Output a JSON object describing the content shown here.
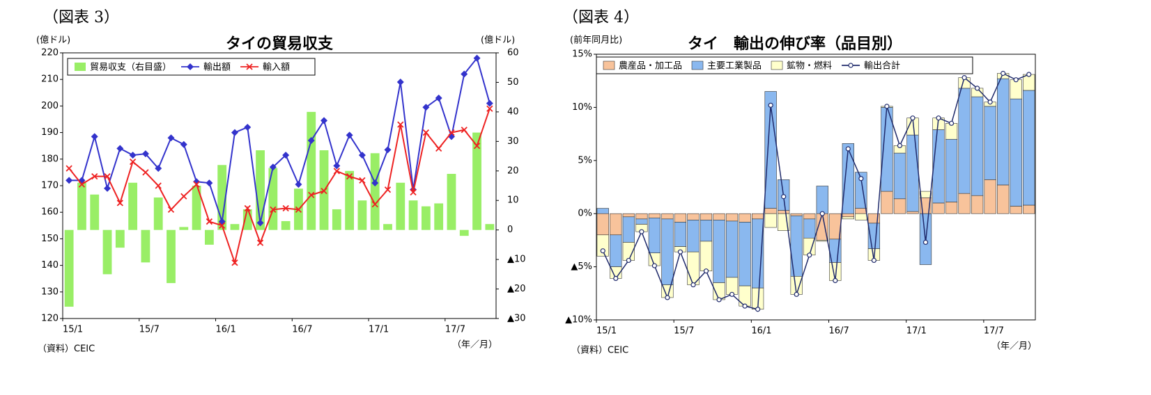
{
  "chart_data": [
    {
      "type": "combo",
      "figure_label": "（図表 3）",
      "title": "タイの貿易収支",
      "y_label": "(億ドル)",
      "y2_label": "(億ドル)",
      "x_label": "（年／月）",
      "source": "（資料）CEIC",
      "categories": [
        "15/1",
        null,
        null,
        null,
        null,
        null,
        "15/7",
        null,
        null,
        null,
        null,
        null,
        "16/1",
        null,
        null,
        null,
        null,
        null,
        "16/7",
        null,
        null,
        null,
        null,
        null,
        "17/1",
        null,
        null,
        null,
        null,
        null,
        "17/7",
        null,
        null,
        null
      ],
      "ylim": [
        120,
        220
      ],
      "yticks": [
        120,
        130,
        140,
        150,
        160,
        170,
        180,
        190,
        200,
        210,
        220
      ],
      "y2lim": [
        -30,
        60
      ],
      "y2ticks": [
        {
          "value": -30,
          "label": "▲30"
        },
        {
          "value": -20,
          "label": "▲20"
        },
        {
          "value": -10,
          "label": "▲10"
        },
        0,
        10,
        20,
        30,
        40,
        50,
        60
      ],
      "grid": false,
      "series": [
        {
          "name": "貿易収支（右目盛）",
          "type": "bar",
          "axis": "y2",
          "color": "#99ee66",
          "values": [
            -26,
            16,
            12,
            -15,
            -6,
            16,
            -11,
            11,
            -18,
            1,
            15,
            -5,
            22,
            2,
            7,
            27,
            21,
            3,
            14,
            40,
            27,
            7,
            20,
            10,
            26,
            2,
            16,
            10,
            8,
            9,
            19,
            -2,
            33,
            2
          ]
        },
        {
          "name": "輸出額",
          "type": "line",
          "marker": "diamond",
          "color": "#3333cc",
          "values": [
            172,
            172,
            188.5,
            169,
            184,
            181.5,
            182,
            176.5,
            188,
            185.5,
            171.5,
            171,
            156.5,
            190,
            192,
            156,
            177,
            181.5,
            170.5,
            187,
            194.5,
            177.5,
            189,
            181.5,
            171,
            183.5,
            209,
            168.5,
            199.5,
            203,
            188.5,
            212,
            218,
            201
          ]
        },
        {
          "name": "輸入額",
          "type": "line",
          "marker": "x",
          "color": "#ee2222",
          "values": [
            176.5,
            170.5,
            173.5,
            173.5,
            163.5,
            179,
            175,
            170,
            161,
            166,
            170.5,
            156.5,
            155,
            141,
            161.5,
            148.5,
            161,
            161.5,
            161,
            166.5,
            168,
            175.5,
            173.5,
            172,
            163,
            168.5,
            193,
            167.5,
            190,
            184,
            190,
            191,
            185,
            199
          ]
        }
      ]
    },
    {
      "type": "stacked_bar",
      "figure_label": "（図表 4）",
      "title": "タイ　輸出の伸び率（品目別）",
      "y_label": "(前年同月比)",
      "x_label": "（年／月）",
      "source": "（資料）CEIC",
      "categories": [
        "15/1",
        null,
        null,
        null,
        null,
        null,
        "15/7",
        null,
        null,
        null,
        null,
        null,
        "16/1",
        null,
        null,
        null,
        null,
        null,
        "16/7",
        null,
        null,
        null,
        null,
        null,
        "17/1",
        null,
        null,
        null,
        null,
        null,
        "17/7",
        null,
        null,
        null
      ],
      "ylim": [
        -10,
        15
      ],
      "yticks": [
        {
          "value": -10,
          "label": "▲10%"
        },
        {
          "value": -5,
          "label": "▲5%"
        },
        {
          "value": 0,
          "label": "0%"
        },
        {
          "value": 5,
          "label": "5%"
        },
        {
          "value": 10,
          "label": "10%"
        },
        {
          "value": 15,
          "label": "15%"
        }
      ],
      "grid": false,
      "series": [
        {
          "name": "農産品・加工品",
          "type": "bar",
          "color": "#f8c39b",
          "values": [
            -2.0,
            -2.0,
            -0.3,
            -0.5,
            -0.4,
            -0.5,
            -0.8,
            -0.6,
            -0.6,
            -0.6,
            -0.7,
            -0.8,
            -0.5,
            0.5,
            0.3,
            -0.2,
            -0.5,
            -2.5,
            -2.4,
            -0.3,
            0.5,
            -0.9,
            2.1,
            1.4,
            0.2,
            1.5,
            1.0,
            1.1,
            1.9,
            1.7,
            3.2,
            2.7,
            0.7,
            0.8
          ]
        },
        {
          "name": "主要工業製品",
          "type": "bar",
          "color": "#8ab8ef",
          "values": [
            0.5,
            -3.0,
            -2.4,
            -0.5,
            -3.3,
            -6.2,
            -2.3,
            -3.0,
            -2.0,
            -5.9,
            -5.3,
            -6.0,
            -6.5,
            11.0,
            2.9,
            -5.7,
            -1.8,
            2.6,
            -2.2,
            6.6,
            3.4,
            -2.4,
            7.9,
            4.3,
            7.2,
            -4.8,
            6.9,
            5.9,
            9.9,
            9.3,
            6.9,
            10.0,
            10.1,
            10.8
          ]
        },
        {
          "name": "鉱物・燃料",
          "type": "bar",
          "color": "#ffffcc",
          "values": [
            -2.0,
            -1.1,
            -1.7,
            -0.7,
            -1.2,
            -1.2,
            -0.5,
            -3.1,
            -2.8,
            -1.6,
            -1.6,
            -1.9,
            -2.0,
            -1.3,
            -1.6,
            -1.7,
            -1.6,
            -0.1,
            -1.7,
            -0.2,
            -0.6,
            -1.1,
            0.1,
            0.7,
            1.6,
            0.6,
            1.1,
            1.5,
            1.0,
            0.8,
            0.4,
            0.5,
            1.8,
            1.5
          ]
        },
        {
          "name": "輸出合計",
          "type": "line",
          "marker": "circle",
          "color": "#1f2a6b",
          "values": [
            -3.5,
            -6.1,
            -4.4,
            -1.7,
            -4.9,
            -7.9,
            -3.6,
            -6.7,
            -5.4,
            -8.1,
            -7.6,
            -8.7,
            -9.0,
            10.2,
            1.6,
            -7.6,
            -3.9,
            0,
            -6.3,
            6.1,
            3.3,
            -4.4,
            10.1,
            6.4,
            9.0,
            -2.7,
            9.0,
            8.5,
            12.8,
            11.8,
            10.5,
            13.2,
            12.6,
            13.1
          ]
        }
      ]
    }
  ]
}
